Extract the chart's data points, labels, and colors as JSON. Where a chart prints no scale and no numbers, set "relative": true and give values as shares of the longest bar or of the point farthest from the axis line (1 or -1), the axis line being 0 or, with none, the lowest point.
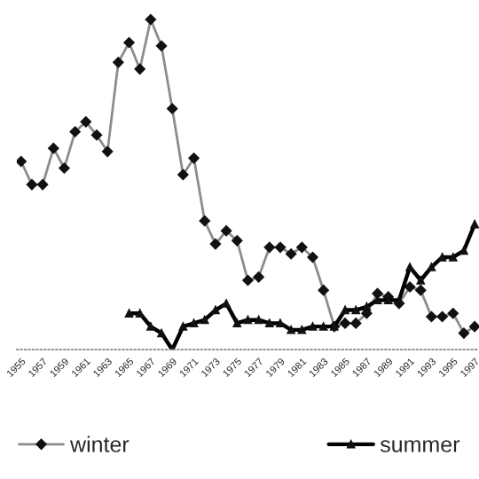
{
  "chart_data": {
    "type": "line",
    "relative": true,
    "legend": "bottom",
    "grid": false,
    "categories": [
      "1955",
      null,
      "1957",
      null,
      "1959",
      null,
      "1961",
      null,
      "1963",
      null,
      "1965",
      null,
      "1967",
      null,
      "1969",
      null,
      "1971",
      null,
      "1973",
      null,
      "1975",
      null,
      "1977",
      null,
      "1979",
      null,
      "1981",
      null,
      "1983",
      null,
      "1985",
      null,
      "1987",
      null,
      "1989",
      null,
      "1991",
      null,
      "1993",
      null,
      "1995",
      null,
      "1997"
    ],
    "series": [
      {
        "name": "winter",
        "color": "#8c8c8c",
        "marker": "diamond",
        "values": [
          0.57,
          0.5,
          0.5,
          0.61,
          0.55,
          0.66,
          0.69,
          0.65,
          0.6,
          0.87,
          0.93,
          0.85,
          1,
          0.92,
          0.73,
          0.53,
          0.58,
          0.39,
          0.32,
          0.36,
          0.33,
          0.21,
          0.22,
          0.31,
          0.31,
          0.29,
          0.31,
          0.28,
          0.18,
          0.07,
          0.08,
          0.08,
          0.11,
          0.17,
          0.16,
          0.14,
          0.19,
          0.18,
          0.1,
          0.1,
          0.11,
          0.05,
          0.07
        ]
      },
      {
        "name": "summer",
        "color": "#000000",
        "marker": "triangle",
        "values": [
          null,
          null,
          null,
          null,
          null,
          null,
          null,
          null,
          null,
          null,
          0.11,
          0.11,
          0.07,
          0.05,
          0.0,
          0.07,
          0.08,
          0.09,
          0.12,
          0.14,
          0.08,
          0.09,
          0.09,
          0.08,
          0.08,
          0.06,
          0.06,
          0.07,
          0.07,
          0.07,
          0.12,
          0.12,
          0.13,
          0.15,
          0.15,
          0.15,
          0.25,
          0.21,
          0.25,
          0.28,
          0.28,
          0.3,
          0.38
        ]
      }
    ]
  }
}
